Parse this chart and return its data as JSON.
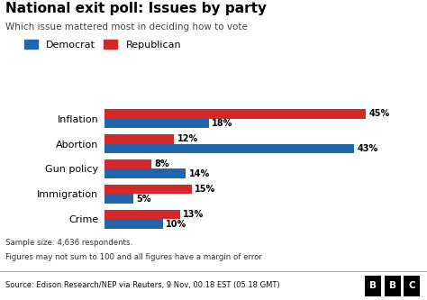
{
  "title": "National exit poll: Issues by party",
  "subtitle": "Which issue mattered most in deciding how to vote",
  "categories": [
    "Inflation",
    "Abortion",
    "Gun policy",
    "Immigration",
    "Crime"
  ],
  "democrat_values": [
    18,
    43,
    14,
    5,
    10
  ],
  "republican_values": [
    45,
    12,
    8,
    15,
    13
  ],
  "democrat_color": "#2166ac",
  "republican_color": "#d6282a",
  "footnote1": "Sample size: 4,636 respondents.",
  "footnote2": "Figures may not sum to 100 and all figures have a margin of error",
  "source": "Source: Edison Research/NEP via Reuters, 9 Nov, 00.18 EST (05.18 GMT)",
  "bbc_text": "BBC",
  "xlim_max": 50
}
